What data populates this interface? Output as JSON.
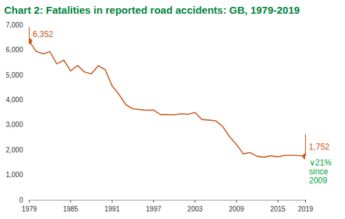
{
  "chart_data": {
    "type": "line",
    "title": "Chart 2:  Fatalities in reported road accidents: GB, 1979-2019",
    "x": [
      1979,
      1980,
      1981,
      1982,
      1983,
      1984,
      1985,
      1986,
      1987,
      1988,
      1989,
      1990,
      1991,
      1992,
      1993,
      1994,
      1995,
      1996,
      1997,
      1998,
      1999,
      2000,
      2001,
      2002,
      2003,
      2004,
      2005,
      2006,
      2007,
      2008,
      2009,
      2010,
      2011,
      2012,
      2013,
      2014,
      2015,
      2016,
      2017,
      2018,
      2019
    ],
    "values": [
      6352,
      5953,
      5846,
      5934,
      5445,
      5599,
      5165,
      5382,
      5125,
      5052,
      5373,
      5217,
      4568,
      4229,
      3814,
      3650,
      3621,
      3598,
      3599,
      3421,
      3423,
      3409,
      3450,
      3431,
      3508,
      3221,
      3201,
      3172,
      2946,
      2538,
      2222,
      1850,
      1901,
      1754,
      1713,
      1775,
      1730,
      1792,
      1793,
      1784,
      1752
    ],
    "color": "#c8581a",
    "xlim": [
      1979,
      2019
    ],
    "xticks": [
      1979,
      1985,
      1991,
      1997,
      2003,
      2009,
      2015,
      2019
    ],
    "ylim": [
      0,
      7000
    ],
    "yticks": [
      0,
      {
        "value": 1000,
        "label": "1,000"
      },
      {
        "value": 2000,
        "label": "2,000"
      },
      {
        "value": 3000,
        "label": "3,000"
      },
      {
        "value": 4000,
        "label": "4,000"
      },
      {
        "value": 5000,
        "label": "5,000"
      },
      {
        "value": 6000,
        "label": "6,000"
      },
      {
        "value": 7000,
        "label": "7,000"
      }
    ],
    "grid": false,
    "annotations": [
      {
        "text": "6,352",
        "x": 1979,
        "y": 6352,
        "color": "#c8581a"
      },
      {
        "text": "1,752",
        "x": 2019,
        "y": 1752,
        "color": "#c8581a"
      },
      {
        "text": [
          "∨21%",
          "since",
          "2009"
        ],
        "x": 2019,
        "y": 1752,
        "color": "#00a33b"
      }
    ]
  }
}
